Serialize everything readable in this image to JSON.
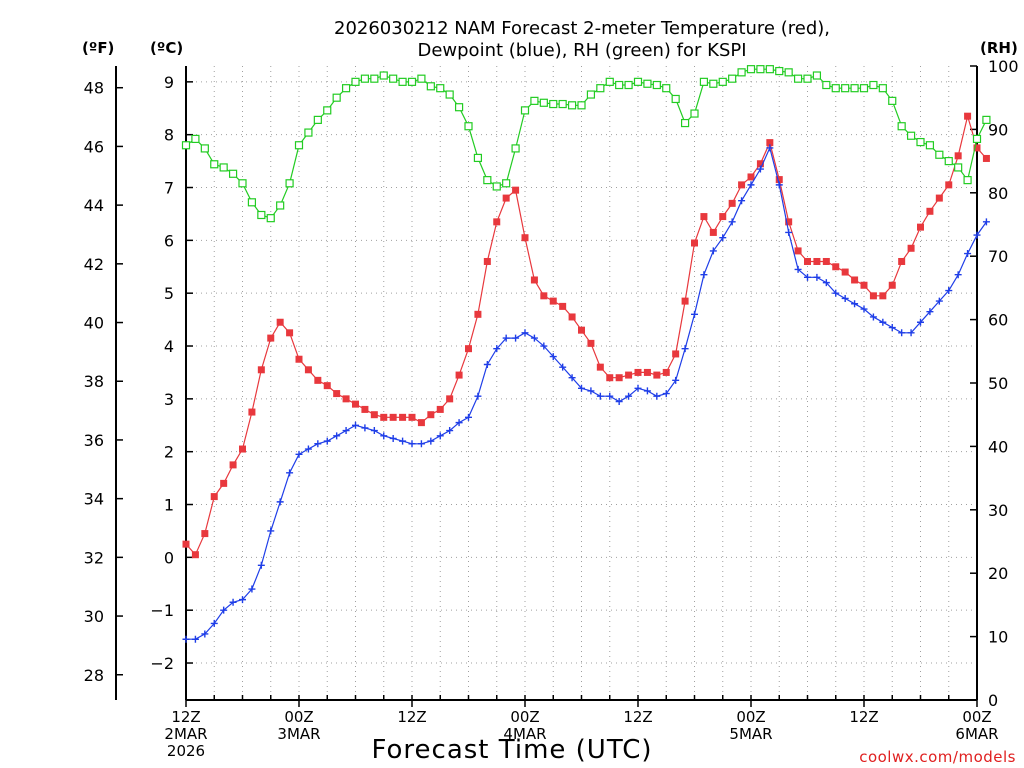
{
  "chart_data": {
    "type": "line",
    "title": [
      "2026030212 NAM Forecast 2-meter Temperature (red),",
      "Dewpoint (blue), RH (green) for KSPI"
    ],
    "xlabel": "Forecast Time (UTC)",
    "credit": "coolwx.com/models",
    "units": {
      "fahrenheit": "(ºF)",
      "celsius": "(ºC)",
      "rh": "(RH)"
    },
    "x_range_hours": [
      0,
      84
    ],
    "x_ticks": [
      {
        "hour": 0,
        "lines": [
          "12Z",
          "2MAR",
          "2026"
        ]
      },
      {
        "hour": 12,
        "lines": [
          "00Z",
          "3MAR"
        ]
      },
      {
        "hour": 24,
        "lines": [
          "12Z"
        ]
      },
      {
        "hour": 36,
        "lines": [
          "00Z",
          "4MAR"
        ]
      },
      {
        "hour": 48,
        "lines": [
          "12Z"
        ]
      },
      {
        "hour": 60,
        "lines": [
          "00Z",
          "5MAR"
        ]
      },
      {
        "hour": 72,
        "lines": [
          "12Z"
        ]
      },
      {
        "hour": 84,
        "lines": [
          "00Z",
          "6MAR"
        ]
      }
    ],
    "celsius_axis": {
      "range": [
        -2.7,
        9.3
      ],
      "ticks": [
        -2,
        -1,
        0,
        1,
        2,
        3,
        4,
        5,
        6,
        7,
        8,
        9
      ],
      "tick_labels": [
        "−2",
        "−1",
        "0",
        "1",
        "2",
        "3",
        "4",
        "5",
        "6",
        "7",
        "8",
        "9"
      ]
    },
    "fahrenheit_axis": {
      "ticks": [
        28,
        30,
        32,
        34,
        36,
        38,
        40,
        42,
        44,
        46,
        48
      ]
    },
    "rh_axis": {
      "range": [
        0,
        100
      ],
      "ticks": [
        0,
        10,
        20,
        30,
        40,
        50,
        60,
        70,
        80,
        90,
        100
      ]
    },
    "series": [
      {
        "name": "Temperature",
        "color": "#e8383d",
        "marker": "filled-square",
        "axis": "celsius",
        "values": [
          0.25,
          0.05,
          0.45,
          1.15,
          1.4,
          1.75,
          2.05,
          2.75,
          3.55,
          4.15,
          4.45,
          4.25,
          3.75,
          3.55,
          3.35,
          3.25,
          3.1,
          3.0,
          2.9,
          2.8,
          2.7,
          2.65,
          2.65,
          2.65,
          2.65,
          2.55,
          2.7,
          2.8,
          3.0,
          3.45,
          3.95,
          4.6,
          5.6,
          6.35,
          6.8,
          6.95,
          6.05,
          5.25,
          4.95,
          4.85,
          4.75,
          4.55,
          4.3,
          4.05,
          3.6,
          3.4,
          3.4,
          3.45,
          3.5,
          3.5,
          3.45,
          3.5,
          3.85,
          4.85,
          5.95,
          6.45,
          6.15,
          6.45,
          6.7,
          7.05,
          7.2,
          7.45,
          7.85,
          7.15,
          6.35,
          5.8,
          5.6,
          5.6,
          5.6,
          5.5,
          5.4,
          5.25,
          5.15,
          4.95,
          4.95,
          5.15,
          5.6,
          5.85,
          6.25,
          6.55,
          6.8,
          7.05,
          7.6,
          8.35,
          7.75,
          7.55
        ]
      },
      {
        "name": "Dewpoint",
        "color": "#1f3ee8",
        "marker": "plus",
        "axis": "celsius",
        "values": [
          -1.55,
          -1.55,
          -1.45,
          -1.25,
          -1.0,
          -0.85,
          -0.8,
          -0.6,
          -0.15,
          0.5,
          1.05,
          1.6,
          1.95,
          2.05,
          2.15,
          2.2,
          2.3,
          2.4,
          2.5,
          2.45,
          2.4,
          2.3,
          2.25,
          2.2,
          2.15,
          2.15,
          2.2,
          2.3,
          2.4,
          2.55,
          2.65,
          3.05,
          3.65,
          3.95,
          4.15,
          4.15,
          4.25,
          4.15,
          4.0,
          3.8,
          3.6,
          3.4,
          3.2,
          3.15,
          3.05,
          3.05,
          2.95,
          3.05,
          3.2,
          3.15,
          3.05,
          3.1,
          3.35,
          3.95,
          4.6,
          5.35,
          5.8,
          6.05,
          6.35,
          6.75,
          7.05,
          7.35,
          7.75,
          7.05,
          6.15,
          5.45,
          5.3,
          5.3,
          5.2,
          5.0,
          4.9,
          4.8,
          4.7,
          4.55,
          4.45,
          4.35,
          4.25,
          4.25,
          4.45,
          4.65,
          4.85,
          5.05,
          5.35,
          5.75,
          6.1,
          6.35
        ]
      },
      {
        "name": "RH",
        "color": "#22cc22",
        "marker": "open-square",
        "axis": "rh",
        "values": [
          87.5,
          88.5,
          87.0,
          84.5,
          84.0,
          83.0,
          81.5,
          78.5,
          76.5,
          76.0,
          78.0,
          81.5,
          87.5,
          89.5,
          91.5,
          93.0,
          95.0,
          96.5,
          97.5,
          98.0,
          98.0,
          98.5,
          98.0,
          97.5,
          97.5,
          98.0,
          96.8,
          96.5,
          95.5,
          93.5,
          90.5,
          85.5,
          82.0,
          81.0,
          81.5,
          87.0,
          93.0,
          94.5,
          94.2,
          94.0,
          94.0,
          93.8,
          93.8,
          95.5,
          96.5,
          97.5,
          97.0,
          97.0,
          97.5,
          97.2,
          97.0,
          96.5,
          94.8,
          91.0,
          92.5,
          97.5,
          97.2,
          97.5,
          98.0,
          99.0,
          99.5,
          99.5,
          99.5,
          99.2,
          99.0,
          98.0,
          98.0,
          98.5,
          97.0,
          96.5,
          96.5,
          96.5,
          96.5,
          97.0,
          96.5,
          94.5,
          90.5,
          89.0,
          88.0,
          87.5,
          86.0,
          85.0,
          84.0,
          82.0,
          88.5,
          91.5
        ]
      }
    ]
  }
}
